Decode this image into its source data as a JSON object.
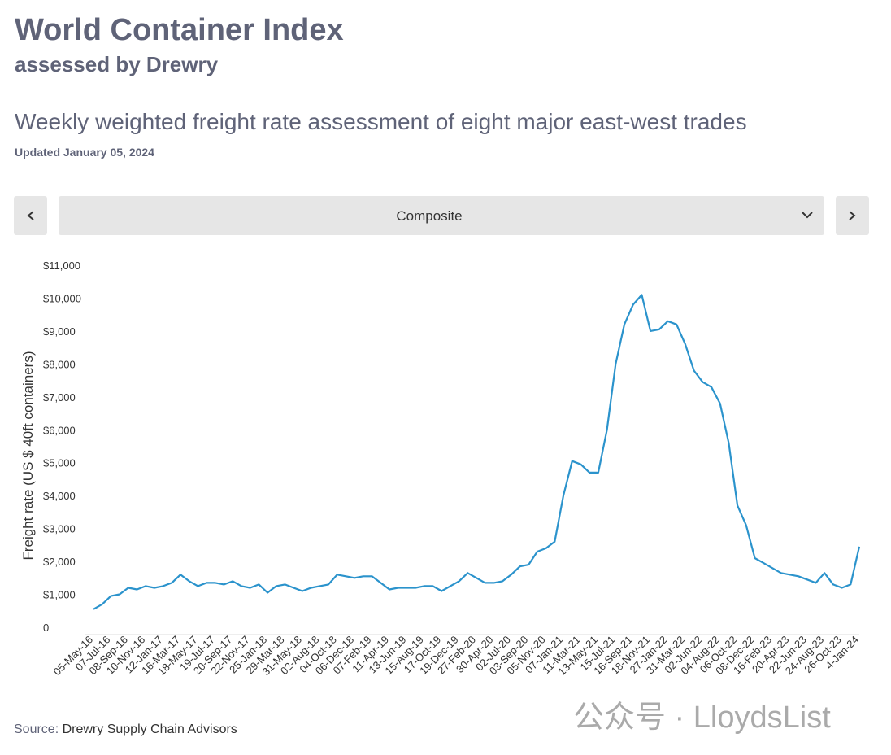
{
  "header": {
    "title": "World Container Index",
    "subtitle": "assessed by Drewry",
    "heading": "Weekly weighted freight rate assessment of eight major east-west trades",
    "updated": "Updated January 05, 2024"
  },
  "selector": {
    "value": "Composite"
  },
  "chart_data": {
    "type": "line",
    "y_label": "Freight rate (US $ 40ft containers)",
    "color": "#2b93cc",
    "categories": [
      "05-May-16",
      null,
      "07-Jul-16",
      null,
      "08-Sep-16",
      null,
      "10-Nov-16",
      null,
      "12-Jan-17",
      null,
      "16-Mar-17",
      null,
      "18-May-17",
      null,
      "19-Jul-17",
      null,
      "20-Sep-17",
      null,
      "22-Nov-17",
      null,
      "25-Jan-18",
      null,
      "29-Mar-18",
      null,
      "31-May-18",
      null,
      "02-Aug-18",
      null,
      "04-Oct-18",
      null,
      "06-Dec-18",
      null,
      "07-Feb-19",
      null,
      "11-Apr-19",
      null,
      "13-Jun-19",
      null,
      "15-Aug-19",
      null,
      "17-Oct-19",
      null,
      "19-Dec-19",
      null,
      "27-Feb-20",
      null,
      "30-Apr-20",
      null,
      "02-Jul-20",
      null,
      "03-Sep-20",
      null,
      "05-Nov-20",
      null,
      "07-Jan-21",
      null,
      "11-Mar-21",
      null,
      "13-May-21",
      null,
      "15-Jul-21",
      null,
      "16-Sep-21",
      null,
      "18-Nov-21",
      null,
      "27-Jan-22",
      null,
      "31-Mar-22",
      null,
      "02-Jun-22",
      null,
      "04-Aug-22",
      null,
      "06-Oct-22",
      null,
      "08-Dec-22",
      null,
      "16-Feb-23",
      null,
      "20-Apr-23",
      null,
      "22-Jun-23",
      null,
      "24-Aug-23",
      null,
      "26-Oct-23",
      null,
      "4-Jan-24"
    ],
    "values": [
      550,
      700,
      950,
      1000,
      1200,
      1150,
      1250,
      1200,
      1250,
      1350,
      1600,
      1400,
      1250,
      1350,
      1350,
      1300,
      1400,
      1250,
      1200,
      1300,
      1050,
      1250,
      1300,
      1200,
      1100,
      1200,
      1250,
      1300,
      1600,
      1550,
      1500,
      1550,
      1550,
      1350,
      1150,
      1200,
      1200,
      1200,
      1250,
      1250,
      1100,
      1250,
      1400,
      1650,
      1500,
      1350,
      1350,
      1400,
      1600,
      1850,
      1900,
      2300,
      2400,
      2600,
      4000,
      5050,
      4950,
      4700,
      4700,
      6000,
      8000,
      9200,
      9800,
      10100,
      9000,
      9050,
      9300,
      9200,
      8600,
      7800,
      7450,
      7300,
      6800,
      5600,
      3700,
      3100,
      2100,
      1950,
      1800,
      1650,
      1600,
      1550,
      1450,
      1350,
      1650,
      1300,
      1200,
      1300,
      2450
    ],
    "ylim": [
      0,
      11000
    ],
    "yticks": [
      0,
      {
        "value": 1000,
        "label": "$1,000"
      },
      {
        "value": 2000,
        "label": "$2,000"
      },
      {
        "value": 3000,
        "label": "$3,000"
      },
      {
        "value": 4000,
        "label": "$4,000"
      },
      {
        "value": 5000,
        "label": "$5,000"
      },
      {
        "value": 6000,
        "label": "$6,000"
      },
      {
        "value": 7000,
        "label": "$7,000"
      },
      {
        "value": 8000,
        "label": "$8,000"
      },
      {
        "value": 9000,
        "label": "$9,000"
      },
      {
        "value": 10000,
        "label": "$10,000"
      },
      {
        "value": 11000,
        "label": "$11,000"
      }
    ]
  },
  "footer": {
    "source_label": "Source:",
    "source": "Drewry Supply Chain Advisors",
    "watermark": "公众号 · LloydsList"
  }
}
